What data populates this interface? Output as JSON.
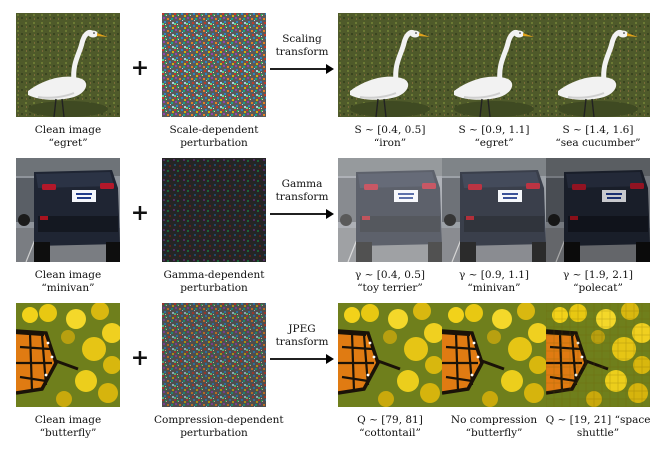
{
  "rows": [
    {
      "clean": {
        "line1": "Clean image",
        "line2": "“egret”"
      },
      "perturbation": {
        "line1": "Scale-dependent",
        "line2": "perturbation"
      },
      "transform": {
        "line1": "Scaling",
        "line2": "transform"
      },
      "outputs": [
        {
          "line1": "S ~ [0.4, 0.5]",
          "line2": "“iron”"
        },
        {
          "line1": "S ~ [0.9, 1.1]",
          "line2": "“egret”"
        },
        {
          "line1": "S ~ [1.4, 1.6]",
          "line2": "“sea cucumber”"
        }
      ]
    },
    {
      "clean": {
        "line1": "Clean image",
        "line2": "“minivan”"
      },
      "perturbation": {
        "line1": "Gamma-dependent",
        "line2": "perturbation"
      },
      "transform": {
        "line1": "Gamma",
        "line2": "transform"
      },
      "outputs": [
        {
          "line1": "γ ~ [0.4, 0.5]",
          "line2": "“toy terrier”"
        },
        {
          "line1": "γ ~ [0.9, 1.1]",
          "line2": "“minivan”"
        },
        {
          "line1": "γ ~ [1.9, 2.1]",
          "line2": "“polecat”"
        }
      ]
    },
    {
      "clean": {
        "line1": "Clean image",
        "line2": "“butterfly”"
      },
      "perturbation": {
        "line1": "Compression-dependent",
        "line2": "perturbation"
      },
      "transform": {
        "line1": "JPEG",
        "line2": "transform"
      },
      "outputs": [
        {
          "line1": "Q ~ [79, 81]",
          "line2": "“cottontail”"
        },
        {
          "line1": "No compression",
          "line2": "“butterfly”"
        },
        {
          "line1": "Q ~ [19, 21] “space",
          "line2": "shuttle”"
        }
      ]
    }
  ],
  "plus_symbol": "+"
}
